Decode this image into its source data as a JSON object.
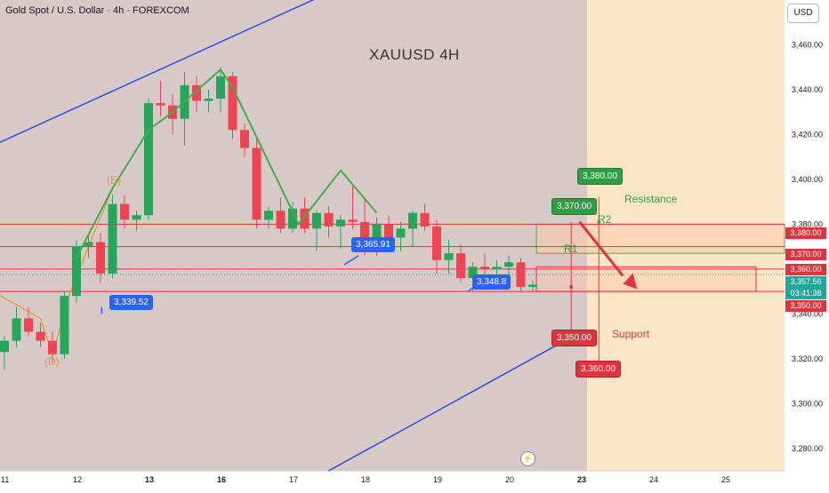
{
  "header": {
    "instrument_title": "Gold Spot / U.S. Dollar · 4h · FOREXCOM",
    "currency_button": "USD",
    "chart_title": "XAUUSD 4H"
  },
  "colors": {
    "up_candle": "#26a65b",
    "down_candle": "#ef4452",
    "trendline": "#2b4ee3",
    "wave_line": "#3fae4a",
    "past_zone": "#d8c9c9",
    "future_zone": "#fde6c8",
    "resistance": "#3fae4a",
    "support": "#e0343c"
  },
  "chart_data": {
    "type": "candlestick",
    "title": "XAUUSD 4H",
    "ylim": [
      3270,
      3480
    ],
    "y_ticks": [
      "3,460.00",
      "3,440.00",
      "3,420.00",
      "3,400.00",
      "3,380.00",
      "3,360.00",
      "3,340.00",
      "3,320.00",
      "3,300.00",
      "3,280.00"
    ],
    "y_tick_values": [
      3460,
      3440,
      3420,
      3400,
      3380,
      3360,
      3340,
      3320,
      3300,
      3280
    ],
    "x_ticks": [
      {
        "label": "11",
        "t": 0
      },
      {
        "label": "12",
        "t": 6
      },
      {
        "label": "13",
        "t": 12
      },
      {
        "label": "16",
        "t": 18
      },
      {
        "label": "17",
        "t": 24
      },
      {
        "label": "18",
        "t": 30
      },
      {
        "label": "19",
        "t": 36
      },
      {
        "label": "20",
        "t": 42
      },
      {
        "label": "23",
        "t": 48
      },
      {
        "label": "24",
        "t": 54
      },
      {
        "label": "25",
        "t": 60
      }
    ],
    "candles": [
      {
        "t": 0,
        "o": 3323,
        "h": 3330,
        "l": 3315,
        "c": 3328
      },
      {
        "t": 1,
        "o": 3328,
        "h": 3343,
        "l": 3325,
        "c": 3338
      },
      {
        "t": 2,
        "o": 3338,
        "h": 3343,
        "l": 3330,
        "c": 3332
      },
      {
        "t": 3,
        "o": 3332,
        "h": 3336,
        "l": 3325,
        "c": 3328
      },
      {
        "t": 4,
        "o": 3328,
        "h": 3332,
        "l": 3318,
        "c": 3322
      },
      {
        "t": 5,
        "o": 3322,
        "h": 3350,
        "l": 3320,
        "c": 3348
      },
      {
        "t": 6,
        "o": 3348,
        "h": 3373,
        "l": 3345,
        "c": 3370
      },
      {
        "t": 7,
        "o": 3370,
        "h": 3375,
        "l": 3365,
        "c": 3372
      },
      {
        "t": 8,
        "o": 3372,
        "h": 3376,
        "l": 3354,
        "c": 3358
      },
      {
        "t": 9,
        "o": 3358,
        "h": 3393,
        "l": 3356,
        "c": 3389
      },
      {
        "t": 10,
        "o": 3389,
        "h": 3393,
        "l": 3378,
        "c": 3382
      },
      {
        "t": 11,
        "o": 3382,
        "h": 3386,
        "l": 3377,
        "c": 3384
      },
      {
        "t": 12,
        "o": 3384,
        "h": 3436,
        "l": 3382,
        "c": 3434
      },
      {
        "t": 13,
        "o": 3434,
        "h": 3444,
        "l": 3428,
        "c": 3433
      },
      {
        "t": 14,
        "o": 3433,
        "h": 3438,
        "l": 3420,
        "c": 3427
      },
      {
        "t": 15,
        "o": 3427,
        "h": 3448,
        "l": 3415,
        "c": 3442
      },
      {
        "t": 16,
        "o": 3442,
        "h": 3446,
        "l": 3430,
        "c": 3435
      },
      {
        "t": 17,
        "o": 3435,
        "h": 3440,
        "l": 3430,
        "c": 3436
      },
      {
        "t": 18,
        "o": 3436,
        "h": 3450,
        "l": 3430,
        "c": 3446
      },
      {
        "t": 19,
        "o": 3446,
        "h": 3448,
        "l": 3418,
        "c": 3422
      },
      {
        "t": 20,
        "o": 3422,
        "h": 3425,
        "l": 3410,
        "c": 3414
      },
      {
        "t": 21,
        "o": 3414,
        "h": 3418,
        "l": 3378,
        "c": 3382
      },
      {
        "t": 22,
        "o": 3382,
        "h": 3388,
        "l": 3378,
        "c": 3386
      },
      {
        "t": 23,
        "o": 3386,
        "h": 3392,
        "l": 3376,
        "c": 3378
      },
      {
        "t": 24,
        "o": 3378,
        "h": 3390,
        "l": 3376,
        "c": 3387
      },
      {
        "t": 25,
        "o": 3387,
        "h": 3392,
        "l": 3376,
        "c": 3378
      },
      {
        "t": 26,
        "o": 3378,
        "h": 3386,
        "l": 3368,
        "c": 3385
      },
      {
        "t": 27,
        "o": 3385,
        "h": 3388,
        "l": 3374,
        "c": 3379
      },
      {
        "t": 28,
        "o": 3379,
        "h": 3384,
        "l": 3369,
        "c": 3382
      },
      {
        "t": 29,
        "o": 3382,
        "h": 3397,
        "l": 3378,
        "c": 3381
      },
      {
        "t": 30,
        "o": 3381,
        "h": 3392,
        "l": 3366,
        "c": 3372
      },
      {
        "t": 31,
        "o": 3372,
        "h": 3383,
        "l": 3366,
        "c": 3380
      },
      {
        "t": 32,
        "o": 3380,
        "h": 3384,
        "l": 3369,
        "c": 3374
      },
      {
        "t": 33,
        "o": 3374,
        "h": 3381,
        "l": 3368,
        "c": 3378
      },
      {
        "t": 34,
        "o": 3378,
        "h": 3386,
        "l": 3370,
        "c": 3385
      },
      {
        "t": 35,
        "o": 3385,
        "h": 3389,
        "l": 3377,
        "c": 3379
      },
      {
        "t": 36,
        "o": 3379,
        "h": 3382,
        "l": 3358,
        "c": 3364
      },
      {
        "t": 37,
        "o": 3364,
        "h": 3373,
        "l": 3358,
        "c": 3367
      },
      {
        "t": 38,
        "o": 3367,
        "h": 3371,
        "l": 3354,
        "c": 3356
      },
      {
        "t": 39,
        "o": 3356,
        "h": 3363,
        "l": 3350,
        "c": 3361
      },
      {
        "t": 40,
        "o": 3361,
        "h": 3367,
        "l": 3354,
        "c": 3360
      },
      {
        "t": 41,
        "o": 3360,
        "h": 3364,
        "l": 3354,
        "c": 3361
      },
      {
        "t": 42,
        "o": 3361,
        "h": 3366,
        "l": 3356,
        "c": 3363
      },
      {
        "t": 43,
        "o": 3363,
        "h": 3365,
        "l": 3350,
        "c": 3352
      },
      {
        "t": 44,
        "o": 3352,
        "h": 3355,
        "l": 3350,
        "c": 3353
      }
    ],
    "wave_path": [
      {
        "t": 6,
        "p": 3365
      },
      {
        "t": 9,
        "p": 3396
      },
      {
        "t": 12,
        "p": 3422
      },
      {
        "t": 14,
        "p": 3430
      },
      {
        "t": 18,
        "p": 3449
      },
      {
        "t": 19,
        "p": 3441
      },
      {
        "t": 24.5,
        "p": 3380
      },
      {
        "t": 28,
        "p": 3404
      },
      {
        "t": 31,
        "p": 3385
      }
    ],
    "trendlines": [
      {
        "t1": -1,
        "p1": 3415,
        "t2": 26.5,
        "p2": 3482
      },
      {
        "t1": 27,
        "p1": 3270,
        "t2": 47,
        "p2": 3329
      }
    ],
    "price_lines": [
      {
        "value": 3380,
        "label": "3,380.00",
        "color": "#e0343c"
      },
      {
        "value": 3370,
        "label": "3,370.00",
        "color": "#e0343c"
      },
      {
        "value": 3360,
        "label": "3,360.00",
        "color": "#e0343c"
      },
      {
        "value": 3350,
        "label": "3,350.00",
        "color": "#e0343c"
      }
    ],
    "current_price": {
      "value": 3357.56,
      "label": "3,357.56",
      "countdown": "03:41:38"
    },
    "zones": [
      {
        "name": "resistance-zone",
        "p_low": 3367,
        "p_high": 3380
      },
      {
        "name": "support-zone",
        "p_low": 3350,
        "p_high": 3361
      }
    ],
    "labels": {
      "e_wave": "(E)",
      "d_wave": "(D)",
      "low_marker": "3,339.52",
      "mid_marker": "3,365.91",
      "recent_marker": "3,348.8",
      "r1": "R1",
      "r2": "R2",
      "resistance_word": "Resistance",
      "support_word": "Support",
      "r_tag_high": "3,380.00",
      "r_tag_low": "3,370.00",
      "s_tag_high": "3,350.00",
      "s_tag_low": "3,360.00"
    }
  }
}
